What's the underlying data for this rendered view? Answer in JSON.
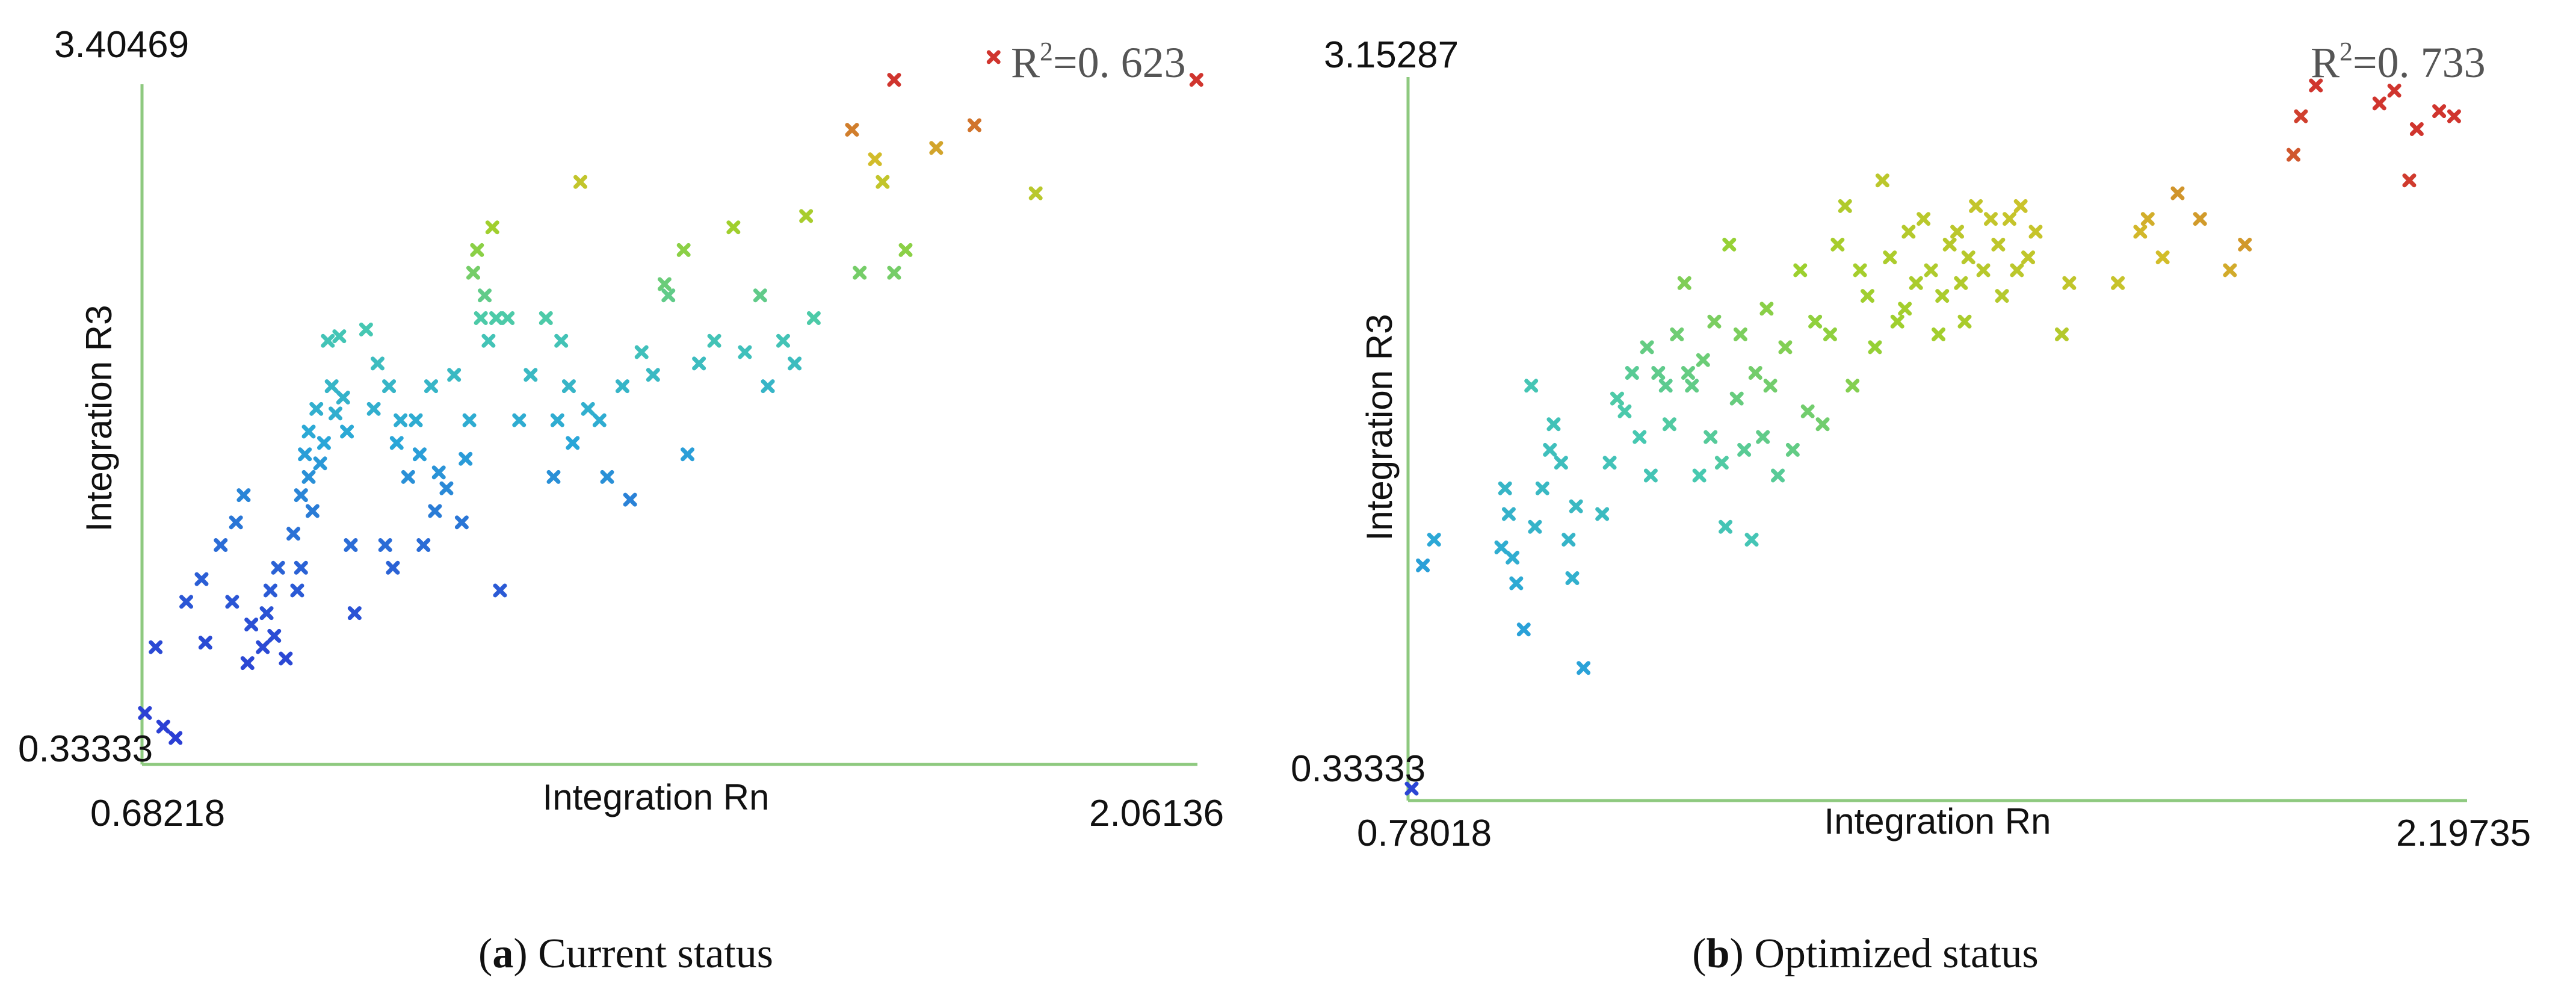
{
  "panels": [
    {
      "caption_letter": "a",
      "caption_open": "(",
      "caption_close": ")",
      "caption_text": " Current status",
      "r2_prefix": "R",
      "r2_sup": "2",
      "r2_value": "=0. 623"
    },
    {
      "caption_letter": "b",
      "caption_open": "(",
      "caption_close": ")",
      "caption_text": " Optimized status",
      "r2_prefix": "R",
      "r2_sup": "2",
      "r2_value": "=0. 733"
    }
  ],
  "chart_data": [
    {
      "type": "scatter",
      "title": "(a) Current status",
      "xlabel": "Integration Rn",
      "ylabel": "Integration R3",
      "xlim": [
        0.68218,
        2.06136
      ],
      "ylim": [
        0.33333,
        3.40469
      ],
      "x_tick_labels": [
        "0.68218",
        "2.06136"
      ],
      "y_tick_labels": [
        "0.33333",
        "3.40469"
      ],
      "annotation": "R2=0.623",
      "marker": "x",
      "color_scale": [
        "#2b3fd4",
        "#2aa6d8",
        "#48c9b0",
        "#9ad12e",
        "#d2c02a",
        "#d0352e"
      ],
      "points": [
        [
          0.686,
          0.56
        ],
        [
          0.7,
          0.85
        ],
        [
          0.71,
          0.5
        ],
        [
          0.726,
          0.45
        ],
        [
          0.74,
          1.05
        ],
        [
          0.76,
          1.15
        ],
        [
          0.765,
          0.87
        ],
        [
          0.785,
          1.3
        ],
        [
          0.8,
          1.05
        ],
        [
          0.805,
          1.4
        ],
        [
          0.815,
          1.52
        ],
        [
          0.82,
          0.78
        ],
        [
          0.825,
          0.95
        ],
        [
          0.84,
          0.85
        ],
        [
          0.845,
          1.0
        ],
        [
          0.85,
          1.1
        ],
        [
          0.855,
          0.9
        ],
        [
          0.86,
          1.2
        ],
        [
          0.87,
          0.8
        ],
        [
          0.88,
          1.35
        ],
        [
          0.885,
          1.1
        ],
        [
          0.89,
          1.2
        ],
        [
          0.89,
          1.52
        ],
        [
          0.895,
          1.7
        ],
        [
          0.9,
          1.6
        ],
        [
          0.9,
          1.8
        ],
        [
          0.905,
          1.45
        ],
        [
          0.91,
          1.9
        ],
        [
          0.915,
          1.66
        ],
        [
          0.92,
          1.75
        ],
        [
          0.925,
          2.2
        ],
        [
          0.93,
          2.0
        ],
        [
          0.935,
          1.88
        ],
        [
          0.94,
          2.22
        ],
        [
          0.945,
          1.95
        ],
        [
          0.95,
          1.8
        ],
        [
          0.955,
          1.3
        ],
        [
          0.96,
          1.0
        ],
        [
          0.975,
          2.25
        ],
        [
          0.985,
          1.9
        ],
        [
          0.99,
          2.1
        ],
        [
          1.0,
          1.3
        ],
        [
          1.005,
          2.0
        ],
        [
          1.01,
          1.2
        ],
        [
          1.015,
          1.75
        ],
        [
          1.02,
          1.85
        ],
        [
          1.03,
          1.6
        ],
        [
          1.04,
          1.85
        ],
        [
          1.045,
          1.7
        ],
        [
          1.05,
          1.3
        ],
        [
          1.06,
          2.0
        ],
        [
          1.065,
          1.45
        ],
        [
          1.07,
          1.62
        ],
        [
          1.08,
          1.55
        ],
        [
          1.09,
          2.05
        ],
        [
          1.1,
          1.4
        ],
        [
          1.105,
          1.68
        ],
        [
          1.11,
          1.85
        ],
        [
          1.115,
          2.5
        ],
        [
          1.12,
          2.6
        ],
        [
          1.125,
          2.3
        ],
        [
          1.13,
          2.4
        ],
        [
          1.14,
          2.7
        ],
        [
          1.15,
          1.1
        ],
        [
          1.135,
          2.2
        ],
        [
          1.145,
          2.3
        ],
        [
          1.16,
          2.3
        ],
        [
          1.175,
          1.85
        ],
        [
          1.19,
          2.05
        ],
        [
          1.21,
          2.3
        ],
        [
          1.22,
          1.6
        ],
        [
          1.225,
          1.85
        ],
        [
          1.23,
          2.2
        ],
        [
          1.24,
          2.0
        ],
        [
          1.245,
          1.75
        ],
        [
          1.255,
          2.9
        ],
        [
          1.265,
          1.9
        ],
        [
          1.28,
          1.85
        ],
        [
          1.29,
          1.6
        ],
        [
          1.31,
          2.0
        ],
        [
          1.32,
          1.5
        ],
        [
          1.335,
          2.15
        ],
        [
          1.35,
          2.05
        ],
        [
          1.365,
          2.45
        ],
        [
          1.37,
          2.4
        ],
        [
          1.39,
          2.6
        ],
        [
          1.395,
          1.7
        ],
        [
          1.41,
          2.1
        ],
        [
          1.43,
          2.2
        ],
        [
          1.455,
          2.7
        ],
        [
          1.47,
          2.15
        ],
        [
          1.49,
          2.4
        ],
        [
          1.5,
          2.0
        ],
        [
          1.52,
          2.2
        ],
        [
          1.535,
          2.1
        ],
        [
          1.55,
          2.75
        ],
        [
          1.56,
          2.3
        ],
        [
          1.62,
          2.5
        ],
        [
          1.65,
          2.9
        ],
        [
          1.665,
          2.5
        ],
        [
          1.61,
          3.13
        ],
        [
          1.64,
          3.0
        ],
        [
          1.665,
          3.35
        ],
        [
          1.68,
          2.6
        ],
        [
          1.72,
          3.05
        ],
        [
          1.77,
          3.15
        ],
        [
          1.795,
          3.45
        ],
        [
          1.85,
          2.85
        ],
        [
          2.06,
          3.35
        ]
      ]
    },
    {
      "type": "scatter",
      "title": "(b) Optimized status",
      "xlabel": "Integration Rn",
      "ylabel": "Integration R3",
      "xlim": [
        0.78018,
        2.19735
      ],
      "ylim": [
        0.33333,
        3.15287
      ],
      "x_tick_labels": [
        "0.78018",
        "2.19735"
      ],
      "y_tick_labels": [
        "0.33333",
        "3.15287"
      ],
      "annotation": "R2=0.733",
      "marker": "x",
      "color_scale": [
        "#2b3fd4",
        "#2aa6d8",
        "#48c9b0",
        "#9ad12e",
        "#d2c02a",
        "#d0352e"
      ],
      "points": [
        [
          0.785,
          0.38
        ],
        [
          0.8,
          1.25
        ],
        [
          0.815,
          1.35
        ],
        [
          0.905,
          1.32
        ],
        [
          0.91,
          1.55
        ],
        [
          0.915,
          1.45
        ],
        [
          0.92,
          1.28
        ],
        [
          0.925,
          1.18
        ],
        [
          0.935,
          1.0
        ],
        [
          0.945,
          1.95
        ],
        [
          0.95,
          1.4
        ],
        [
          0.96,
          1.55
        ],
        [
          0.97,
          1.7
        ],
        [
          0.975,
          1.8
        ],
        [
          0.985,
          1.65
        ],
        [
          0.995,
          1.35
        ],
        [
          1.0,
          1.2
        ],
        [
          1.005,
          1.48
        ],
        [
          1.015,
          0.85
        ],
        [
          1.04,
          1.45
        ],
        [
          1.05,
          1.65
        ],
        [
          1.06,
          1.9
        ],
        [
          1.07,
          1.85
        ],
        [
          1.08,
          2.0
        ],
        [
          1.09,
          1.75
        ],
        [
          1.1,
          2.1
        ],
        [
          1.105,
          1.6
        ],
        [
          1.115,
          2.0
        ],
        [
          1.125,
          1.95
        ],
        [
          1.13,
          1.8
        ],
        [
          1.14,
          2.15
        ],
        [
          1.15,
          2.35
        ],
        [
          1.155,
          2.0
        ],
        [
          1.16,
          1.95
        ],
        [
          1.17,
          1.6
        ],
        [
          1.175,
          2.05
        ],
        [
          1.185,
          1.75
        ],
        [
          1.19,
          2.2
        ],
        [
          1.2,
          1.65
        ],
        [
          1.205,
          1.4
        ],
        [
          1.21,
          2.5
        ],
        [
          1.22,
          1.9
        ],
        [
          1.225,
          2.15
        ],
        [
          1.23,
          1.7
        ],
        [
          1.24,
          1.35
        ],
        [
          1.245,
          2.0
        ],
        [
          1.255,
          1.75
        ],
        [
          1.26,
          2.25
        ],
        [
          1.265,
          1.95
        ],
        [
          1.275,
          1.6
        ],
        [
          1.285,
          2.1
        ],
        [
          1.295,
          1.7
        ],
        [
          1.305,
          2.4
        ],
        [
          1.315,
          1.85
        ],
        [
          1.325,
          2.2
        ],
        [
          1.335,
          1.8
        ],
        [
          1.345,
          2.15
        ],
        [
          1.355,
          2.5
        ],
        [
          1.365,
          2.65
        ],
        [
          1.375,
          1.95
        ],
        [
          1.385,
          2.4
        ],
        [
          1.395,
          2.3
        ],
        [
          1.405,
          2.1
        ],
        [
          1.415,
          2.75
        ],
        [
          1.425,
          2.45
        ],
        [
          1.435,
          2.2
        ],
        [
          1.445,
          2.25
        ],
        [
          1.45,
          2.55
        ],
        [
          1.46,
          2.35
        ],
        [
          1.47,
          2.6
        ],
        [
          1.48,
          2.4
        ],
        [
          1.49,
          2.15
        ],
        [
          1.495,
          2.3
        ],
        [
          1.505,
          2.5
        ],
        [
          1.515,
          2.55
        ],
        [
          1.52,
          2.35
        ],
        [
          1.525,
          2.2
        ],
        [
          1.53,
          2.45
        ],
        [
          1.54,
          2.65
        ],
        [
          1.55,
          2.4
        ],
        [
          1.56,
          2.6
        ],
        [
          1.57,
          2.5
        ],
        [
          1.575,
          2.3
        ],
        [
          1.585,
          2.6
        ],
        [
          1.595,
          2.4
        ],
        [
          1.6,
          2.65
        ],
        [
          1.61,
          2.45
        ],
        [
          1.62,
          2.55
        ],
        [
          1.655,
          2.15
        ],
        [
          1.665,
          2.35
        ],
        [
          1.73,
          2.35
        ],
        [
          1.76,
          2.55
        ],
        [
          1.77,
          2.6
        ],
        [
          1.79,
          2.45
        ],
        [
          1.81,
          2.7
        ],
        [
          1.84,
          2.6
        ],
        [
          1.88,
          2.4
        ],
        [
          1.9,
          2.5
        ],
        [
          1.965,
          2.85
        ],
        [
          1.975,
          3.0
        ],
        [
          1.995,
          3.12
        ],
        [
          2.08,
          3.05
        ],
        [
          2.1,
          3.1
        ],
        [
          2.12,
          2.75
        ],
        [
          2.13,
          2.95
        ],
        [
          2.16,
          3.02
        ],
        [
          2.18,
          3.0
        ]
      ]
    }
  ]
}
